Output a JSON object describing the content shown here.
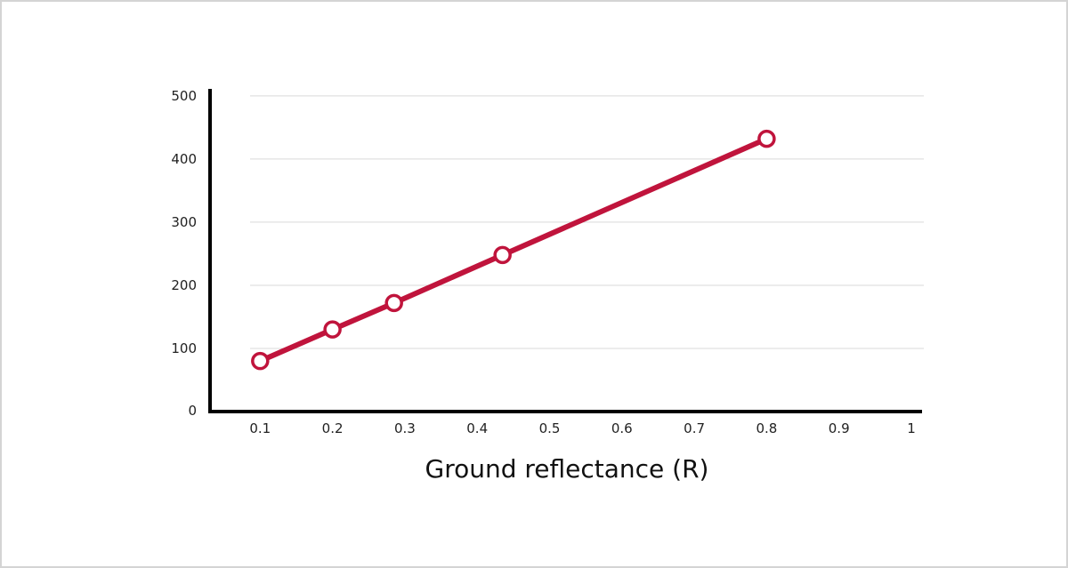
{
  "chart_data": {
    "type": "line",
    "title": "",
    "xlabel": "Ground reflectance (R)",
    "ylabel": "",
    "x_ticks": [
      "0.1",
      "0.2",
      "0.3",
      "0.4",
      "0.5",
      "0.6",
      "0.7",
      "0.8",
      "0.9",
      "1"
    ],
    "y_ticks": [
      "0",
      "100",
      "200",
      "300",
      "400",
      "500"
    ],
    "xlim": [
      0,
      1
    ],
    "ylim": [
      0,
      500
    ],
    "grid": "horizontal",
    "legend": "none",
    "series": [
      {
        "color": "#c0143c",
        "x": [
          0.1,
          0.2,
          0.285,
          0.435,
          0.8
        ],
        "y": [
          80,
          130,
          172,
          248,
          432
        ]
      }
    ]
  }
}
